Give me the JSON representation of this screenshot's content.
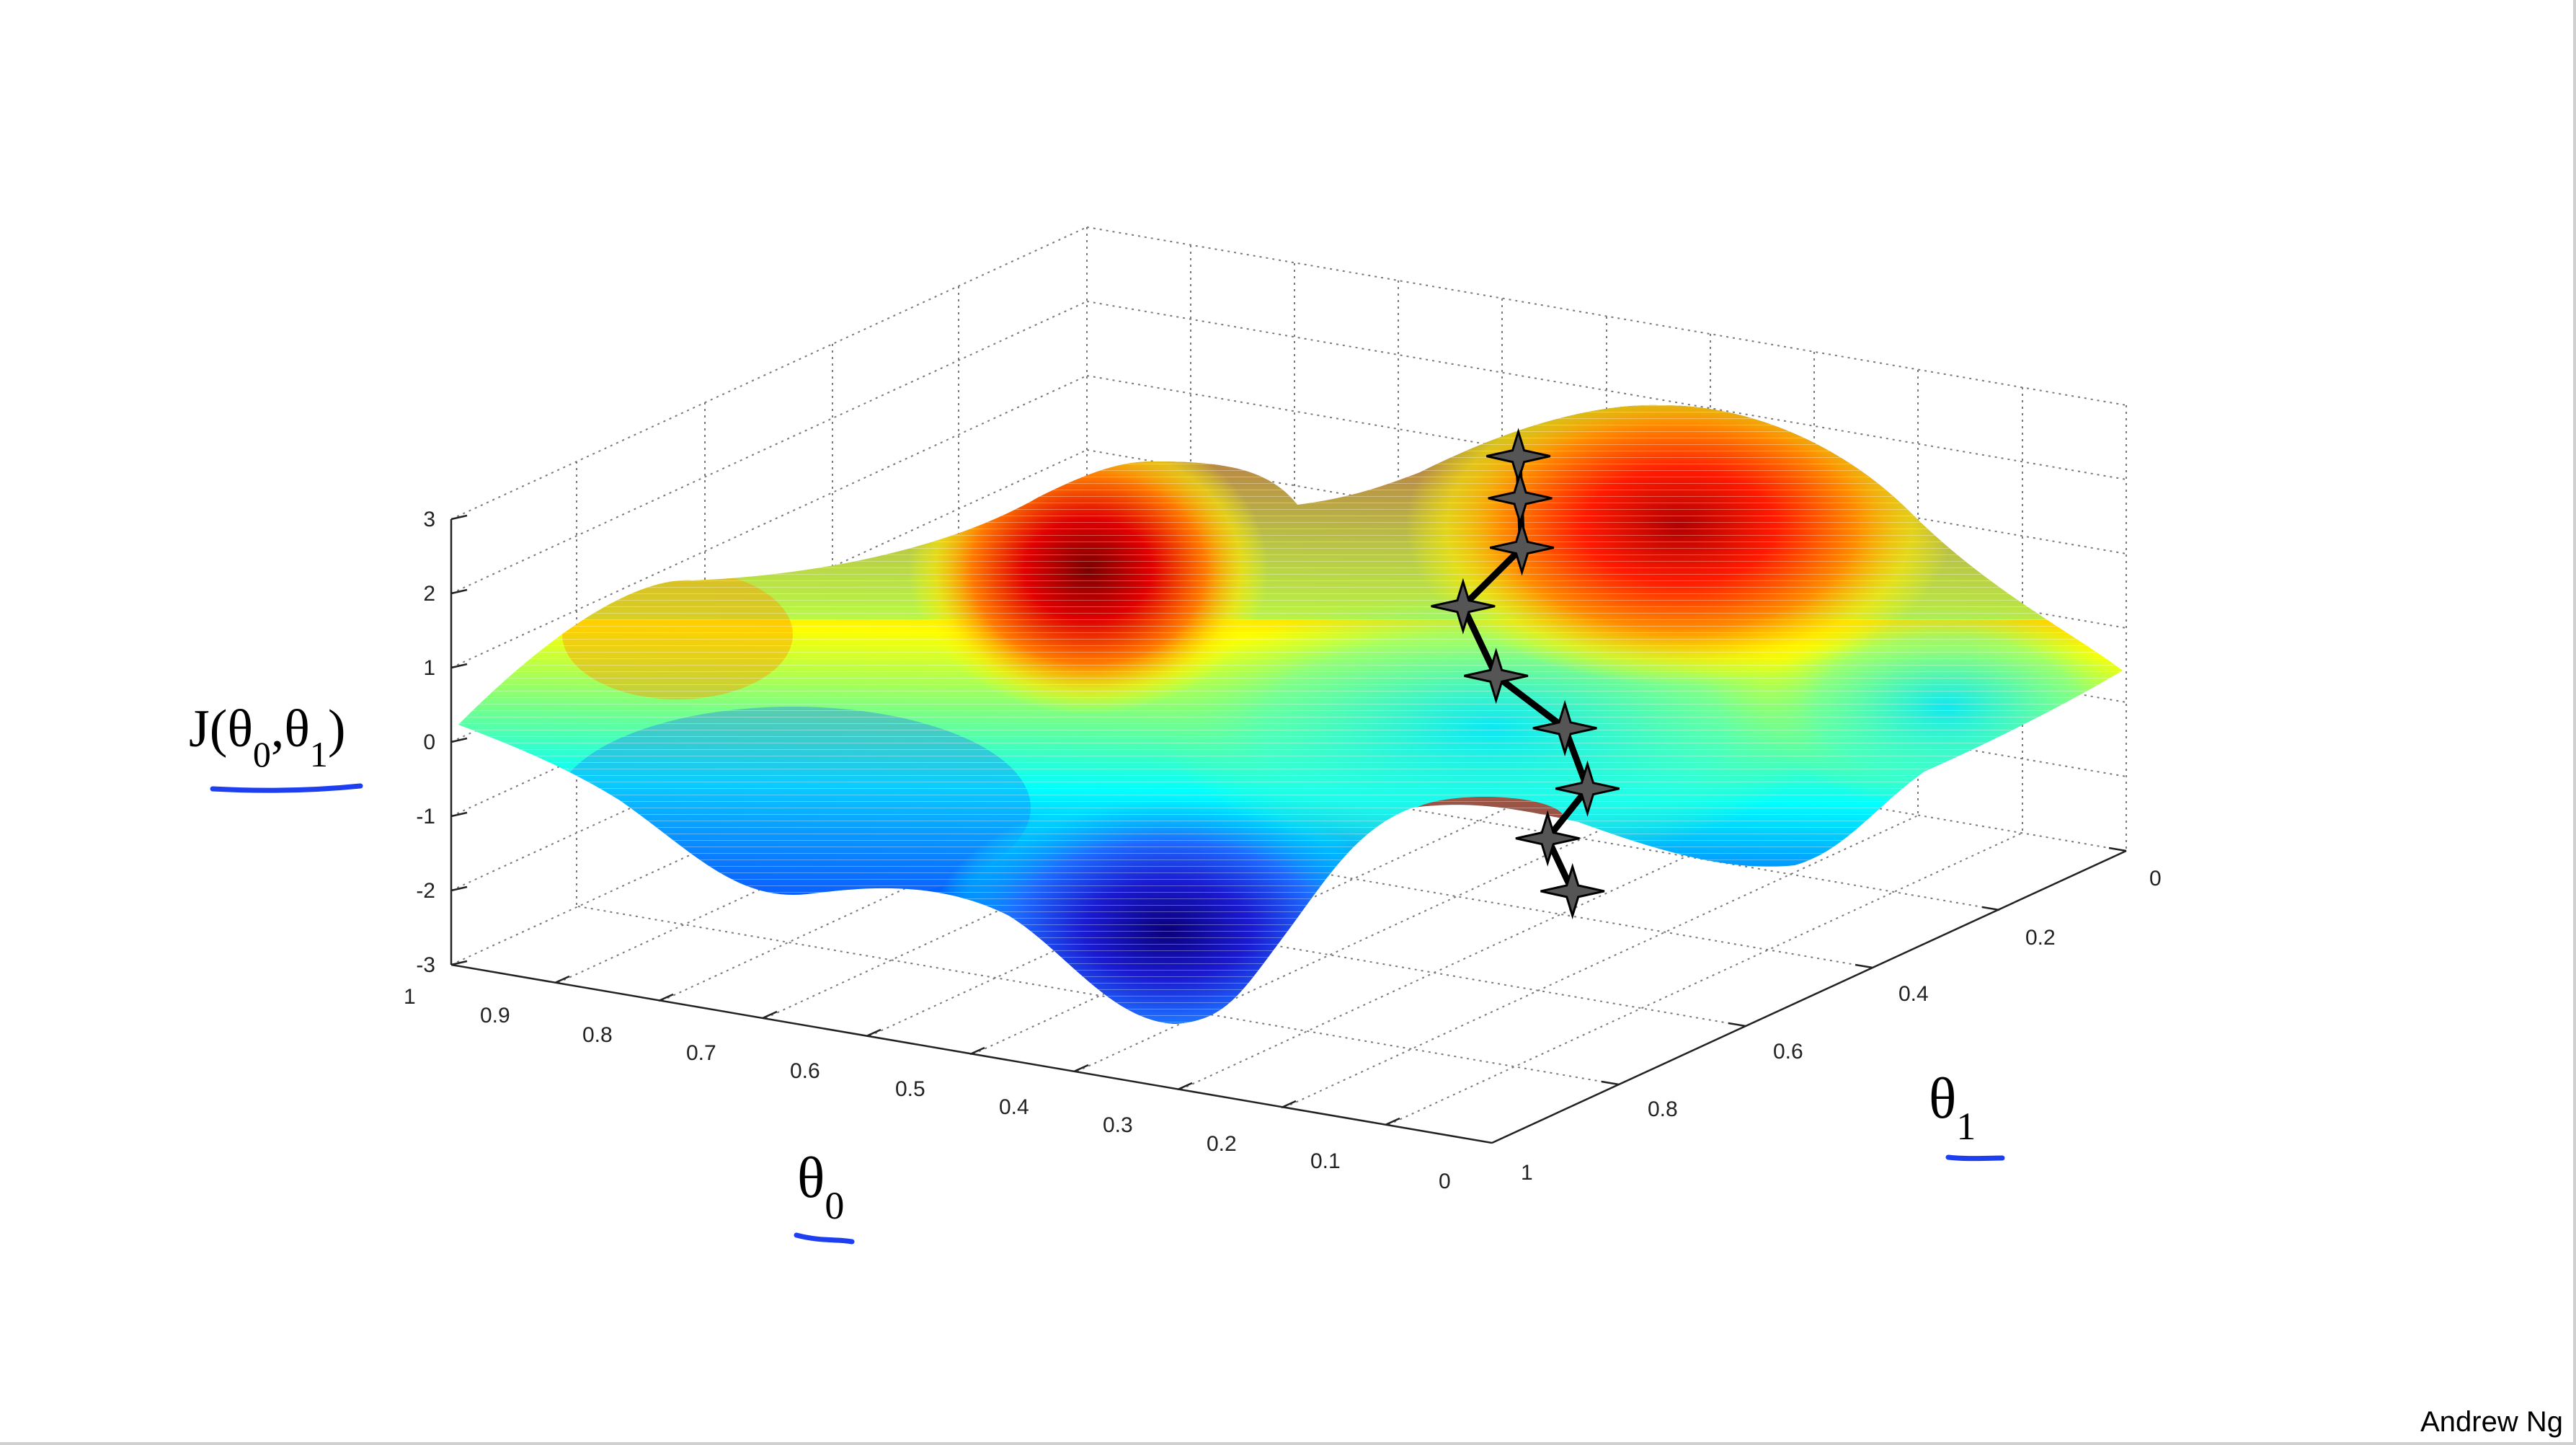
{
  "chart_data": {
    "type": "surface",
    "title": "",
    "xlabel_var": "θ",
    "xlabel_sub": "0",
    "ylabel_var": "θ",
    "ylabel_sub": "1",
    "zlabel_prefix": "J(θ",
    "zlabel_sub1": "0",
    "zlabel_mid": ",θ",
    "zlabel_sub2": "1",
    "zlabel_suffix": ")",
    "x_ticks": [
      "1",
      "0.9",
      "0.8",
      "0.7",
      "0.6",
      "0.5",
      "0.4",
      "0.3",
      "0.2",
      "0.1",
      "0"
    ],
    "y_ticks": [
      "0",
      "0.2",
      "0.4",
      "0.6",
      "0.8",
      "1"
    ],
    "z_ticks": [
      "3",
      "2",
      "1",
      "0",
      "-1",
      "-2",
      "-3"
    ],
    "x_range": [
      0,
      1
    ],
    "y_range": [
      0,
      1
    ],
    "z_range": [
      -3,
      3
    ],
    "colormap": "jet",
    "grid": true,
    "surface_features": [
      {
        "kind": "peak",
        "theta0": 0.45,
        "theta1": 0.2,
        "J": 2.4
      },
      {
        "kind": "peak",
        "theta0": 0.42,
        "theta1": 0.72,
        "J": 2.5
      },
      {
        "kind": "valley",
        "theta0": 0.28,
        "theta1": 0.42,
        "J": -2.8
      }
    ],
    "descent_path": [
      {
        "theta0": 0.45,
        "theta1": 0.22,
        "J": 2.1
      },
      {
        "theta0": 0.43,
        "theta1": 0.25,
        "J": 1.7
      },
      {
        "theta0": 0.41,
        "theta1": 0.28,
        "J": 1.2
      },
      {
        "theta0": 0.43,
        "theta1": 0.34,
        "J": 0.6
      },
      {
        "theta0": 0.38,
        "theta1": 0.37,
        "J": -0.1
      },
      {
        "theta0": 0.32,
        "theta1": 0.36,
        "J": -0.7
      },
      {
        "theta0": 0.28,
        "theta1": 0.39,
        "J": -1.3
      },
      {
        "theta0": 0.3,
        "theta1": 0.42,
        "J": -1.9
      },
      {
        "theta0": 0.27,
        "theta1": 0.43,
        "J": -2.5
      }
    ]
  },
  "footer": {
    "credit": "Andrew Ng"
  },
  "colors": {
    "annotation_ink": "#1d3ff0",
    "path": "#000000"
  }
}
